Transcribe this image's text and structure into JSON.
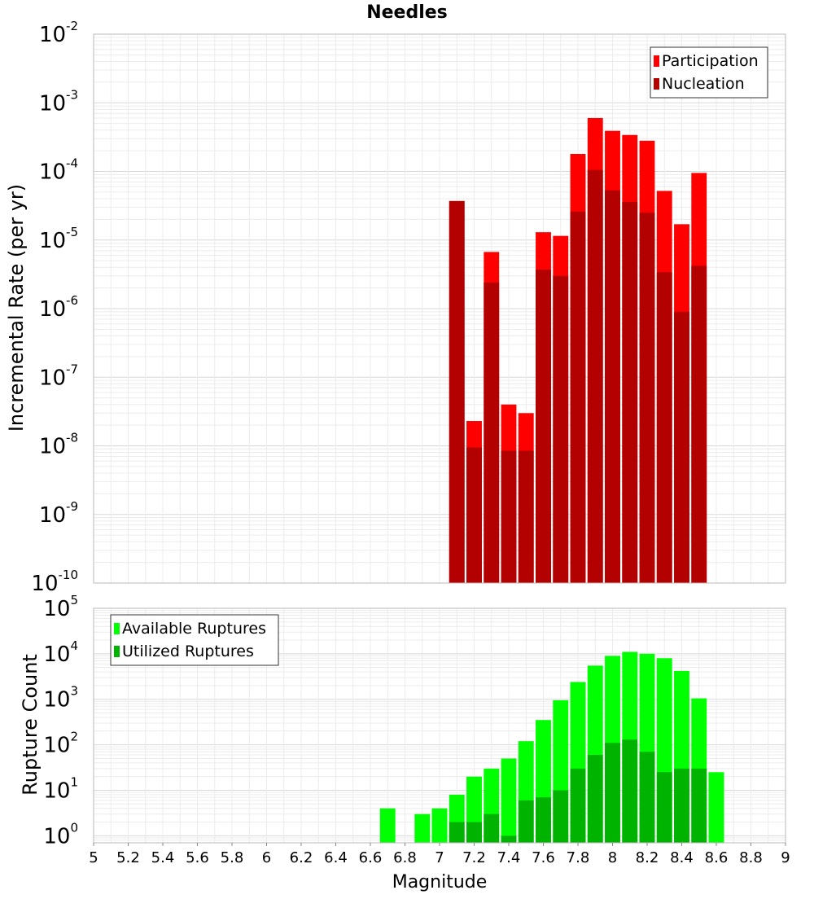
{
  "chart_data": [
    {
      "type": "bar",
      "title": "Needles",
      "xlabel": "",
      "ylabel": "Incremental Rate (per yr)",
      "yscale": "log",
      "ylim": [
        1e-10,
        0.01
      ],
      "xlim": [
        5,
        9
      ],
      "bar_width": 0.1,
      "grid": true,
      "legend_position": "top-right",
      "ytick_exponents": [
        "-10",
        "-9",
        "-8",
        "-7",
        "-6",
        "-5",
        "-4",
        "-3",
        "-2"
      ],
      "series": [
        {
          "name": "Participation",
          "color": "#ff0000",
          "x": [
            7.1,
            7.2,
            7.3,
            7.4,
            7.5,
            7.6,
            7.7,
            7.8,
            7.9,
            8.0,
            8.1,
            8.2,
            8.3,
            8.4,
            8.5
          ],
          "values": [
            3.7e-05,
            2.3e-08,
            6.7e-06,
            4e-08,
            3e-08,
            1.3e-05,
            1.15e-05,
            0.00018,
            0.0006,
            0.00039,
            0.00034,
            0.00028,
            5.2e-05,
            1.7e-05,
            9.5e-05
          ]
        },
        {
          "name": "Nucleation",
          "color": "#b30000",
          "x": [
            7.1,
            7.2,
            7.3,
            7.4,
            7.5,
            7.6,
            7.7,
            7.8,
            7.9,
            8.0,
            8.1,
            8.2,
            8.3,
            8.4,
            8.5
          ],
          "values": [
            3.7e-05,
            9.5e-09,
            2.4e-06,
            8.5e-09,
            8.5e-09,
            3.7e-06,
            3e-06,
            2.6e-05,
            0.000105,
            5.3e-05,
            3.6e-05,
            2.5e-05,
            3.4e-06,
            9e-07,
            4.2e-06
          ]
        }
      ]
    },
    {
      "type": "bar",
      "title": "",
      "xlabel": "Magnitude",
      "ylabel": "Rupture Count",
      "yscale": "log",
      "ylim": [
        0.7,
        100000.0
      ],
      "xlim": [
        5,
        9
      ],
      "bar_width": 0.1,
      "grid": true,
      "legend_position": "top-left",
      "xticks": [
        "5",
        "5.2",
        "5.4",
        "5.6",
        "5.8",
        "6",
        "6.2",
        "6.4",
        "6.6",
        "6.8",
        "7",
        "7.2",
        "7.4",
        "7.6",
        "7.8",
        "8",
        "8.2",
        "8.4",
        "8.6",
        "8.8",
        "9"
      ],
      "ytick_exponents": [
        "0",
        "1",
        "2",
        "3",
        "4",
        "5"
      ],
      "series": [
        {
          "name": "Available Ruptures",
          "color": "#00ff00",
          "x": [
            6.7,
            6.9,
            7.0,
            7.1,
            7.2,
            7.3,
            7.4,
            7.5,
            7.6,
            7.7,
            7.8,
            7.9,
            8.0,
            8.1,
            8.2,
            8.3,
            8.4,
            8.5,
            8.6
          ],
          "values": [
            4,
            3,
            4,
            8,
            20,
            30,
            50,
            120,
            350,
            950,
            2400,
            5500,
            9000,
            11000,
            10000,
            8000,
            4200,
            1050,
            25
          ]
        },
        {
          "name": "Utilized Ruptures",
          "color": "#00b300",
          "x": [
            7.1,
            7.2,
            7.3,
            7.4,
            7.5,
            7.6,
            7.7,
            7.8,
            7.9,
            8.0,
            8.1,
            8.2,
            8.3,
            8.4,
            8.5
          ],
          "values": [
            2,
            2,
            3,
            1,
            6,
            7,
            10,
            30,
            60,
            110,
            130,
            70,
            25,
            30,
            30
          ]
        }
      ]
    }
  ]
}
